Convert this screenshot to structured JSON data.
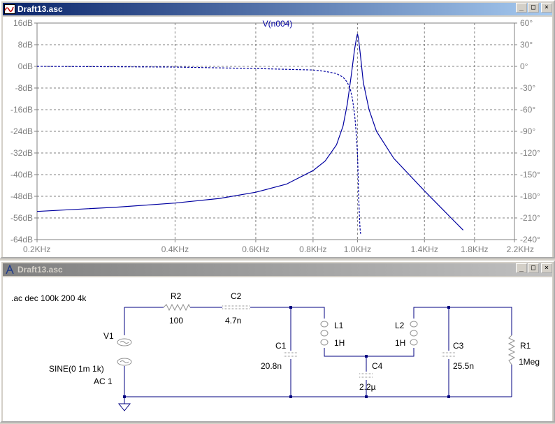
{
  "plot_window": {
    "title": "Draft13.asc",
    "trace_name": "V(n004)",
    "buttons": {
      "minimize": "_",
      "maximize": "□",
      "close": "×"
    }
  },
  "chart_data": {
    "type": "line",
    "title": "V(n004)",
    "x_scale": "log",
    "xlim": [
      200,
      2200
    ],
    "x_ticks": [
      {
        "value": 200,
        "label": "0.2KHz"
      },
      {
        "value": 400,
        "label": "0.4KHz"
      },
      {
        "value": 600,
        "label": "0.6KHz"
      },
      {
        "value": 800,
        "label": "0.8KHz"
      },
      {
        "value": 1000,
        "label": "1.0KHz"
      },
      {
        "value": 1400,
        "label": "1.4KHz"
      },
      {
        "value": 1800,
        "label": "1.8KHz"
      },
      {
        "value": 2200,
        "label": "2.2KHz"
      }
    ],
    "ylim_left": [
      -64,
      16
    ],
    "y_ticks_left": [
      "16dB",
      "8dB",
      "0dB",
      "-8dB",
      "-16dB",
      "-24dB",
      "-32dB",
      "-40dB",
      "-48dB",
      "-56dB",
      "-64dB"
    ],
    "ylim_right": [
      -240,
      60
    ],
    "y_ticks_right": [
      "60°",
      "30°",
      "0°",
      "-30°",
      "-60°",
      "-90°",
      "-120°",
      "-150°",
      "-180°",
      "-210°",
      "-240°"
    ],
    "grid": true,
    "series": [
      {
        "axis": "left",
        "style": "solid",
        "x": [
          200,
          300,
          400,
          500,
          600,
          700,
          800,
          850,
          900,
          930,
          950,
          970,
          985,
          995,
          1000,
          1005,
          1015,
          1030,
          1060,
          1100,
          1200,
          1400,
          1600,
          1700
        ],
        "y": [
          -53.6,
          -52,
          -50.5,
          -48.8,
          -46.5,
          -43.5,
          -38.5,
          -35,
          -29,
          -22,
          -14,
          -3,
          6,
          10.5,
          12,
          10.5,
          4,
          -6,
          -16,
          -24,
          -34,
          -46,
          -56,
          -60.5
        ]
      },
      {
        "axis": "right",
        "style": "dashed",
        "x": [
          200,
          400,
          600,
          800,
          850,
          900,
          930,
          950,
          965,
          975,
          985,
          990,
          995,
          1000,
          1003,
          1006,
          1010,
          1013,
          1016
        ],
        "y": [
          0,
          -1,
          -3,
          -5,
          -7,
          -10,
          -15,
          -22,
          -32,
          -45,
          -65,
          -80,
          -100,
          -120,
          -150,
          -180,
          -210,
          -225,
          -232
        ]
      }
    ],
    "colors": {
      "trace": "#0000a0",
      "grid": "#808080",
      "axis_text": "#808080",
      "title_text": "#0000a0"
    }
  },
  "schematic_window": {
    "title": "Draft13.asc",
    "buttons": {
      "minimize": "_",
      "maximize": "□",
      "close": "×"
    },
    "directive": ".ac dec 100k 200 4k",
    "components": {
      "v1": {
        "name": "V1",
        "value1": "SINE(0 1m 1k)",
        "value2": "AC 1"
      },
      "r2": {
        "name": "R2",
        "value": "100"
      },
      "c2": {
        "name": "C2",
        "value": "4.7n"
      },
      "c1": {
        "name": "C1",
        "value": "20.8n"
      },
      "l1": {
        "name": "L1",
        "value": "1H"
      },
      "l2": {
        "name": "L2",
        "value": "1H"
      },
      "c4": {
        "name": "C4",
        "value": "2.2µ"
      },
      "c3": {
        "name": "C3",
        "value": "25.5n"
      },
      "r1": {
        "name": "R1",
        "value": "1Meg"
      }
    }
  }
}
